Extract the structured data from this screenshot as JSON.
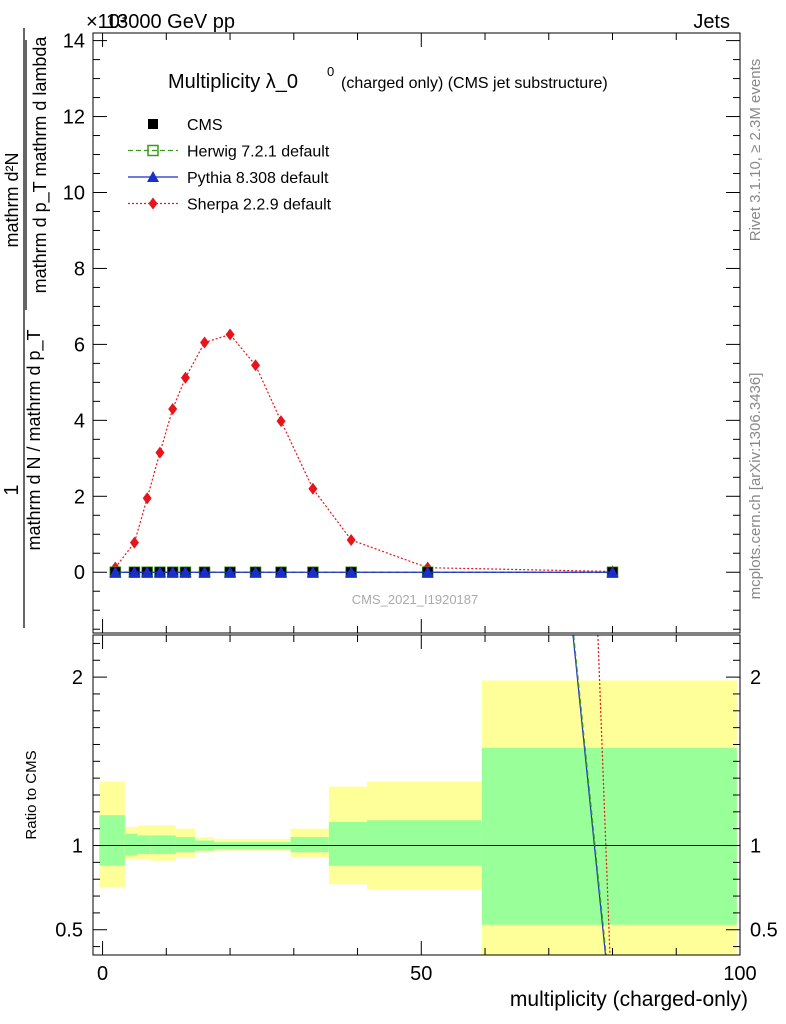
{
  "header": {
    "left": "13000 GeV pp",
    "right": "Jets",
    "exponent": "×10³"
  },
  "side_labels": {
    "rivet": "Rivet 3.1.10, ≥ 2.3M events",
    "mcplots": "mcplots.cern.ch [arXiv:1306.3436]"
  },
  "watermark": "CMS_2021_I1920187",
  "chart_data": [
    {
      "type": "line",
      "title_main": "Multiplicity λ_0",
      "title_sup": "0",
      "title_sub": "(charged only) (CMS jet substructure)",
      "ylabel": {
        "num": "mathrm d²N",
        "den": "mathrm d p_T mathrm d lambda",
        "prefix_num": "1",
        "prefix_den": "mathrm d N / mathrm d p_T"
      },
      "xlim": [
        -1.5,
        100
      ],
      "ylim": [
        -1.6,
        14.2
      ],
      "y_ticks": [
        0,
        2,
        4,
        6,
        8,
        10,
        12,
        14
      ],
      "x_ticks": [
        0,
        50,
        100
      ],
      "legend": [
        {
          "name": "CMS",
          "color": "#000000",
          "marker": "square"
        },
        {
          "name": "Herwig 7.2.1 default",
          "color": "#3a9a1a",
          "marker": "open-square",
          "dash": "5,3"
        },
        {
          "name": "Pythia 8.308 default",
          "color": "#1a2ec8",
          "marker": "triangle",
          "dash": ""
        },
        {
          "name": "Sherpa 2.2.9 default",
          "color": "#e8141b",
          "marker": "diamond",
          "dash": "2,2"
        }
      ],
      "x": [
        2,
        5,
        7,
        9,
        11,
        13,
        16,
        20,
        24,
        28,
        33,
        39,
        51,
        80
      ],
      "series": [
        {
          "name": "CMS",
          "values": [
            0,
            0,
            0,
            0,
            0,
            0,
            0,
            0,
            0,
            0,
            0,
            0,
            0,
            0
          ]
        },
        {
          "name": "Herwig 7.2.1 default",
          "values": [
            0,
            0,
            0,
            0,
            0,
            0,
            0,
            0,
            0,
            0,
            0,
            0,
            0,
            0
          ]
        },
        {
          "name": "Pythia 8.308 default",
          "values": [
            0,
            0,
            0,
            0,
            0,
            0,
            0,
            0,
            0,
            0,
            0,
            0,
            0,
            0
          ]
        },
        {
          "name": "Sherpa 2.2.9 default",
          "values": [
            0.12,
            0.78,
            1.95,
            3.15,
            4.3,
            5.12,
            6.05,
            6.26,
            5.45,
            3.98,
            2.2,
            0.85,
            0.12,
            0.02
          ]
        }
      ]
    },
    {
      "type": "area",
      "ylabel": "Ratio to CMS",
      "xlabel": "multiplicity (charged-only)",
      "xlim": [
        -1.5,
        100
      ],
      "ylim": [
        0.35,
        2.25
      ],
      "y_ticks": [
        0.5,
        1,
        2
      ],
      "y_tick_labels": [
        "0.5",
        "1",
        "2"
      ],
      "x_ticks": [
        0,
        50,
        100
      ],
      "band_colors": {
        "outer": "#ffff99",
        "inner": "#99ff99"
      },
      "bins": [
        {
          "lo": -0.5,
          "hi": 3.5,
          "inner": [
            0.88,
            1.18
          ],
          "outer": [
            0.75,
            1.38
          ]
        },
        {
          "lo": 3.5,
          "hi": 5.5,
          "inner": [
            0.94,
            1.07
          ],
          "outer": [
            0.92,
            1.11
          ]
        },
        {
          "lo": 5.5,
          "hi": 7.5,
          "inner": [
            0.95,
            1.06
          ],
          "outer": [
            0.92,
            1.12
          ]
        },
        {
          "lo": 7.5,
          "hi": 11.5,
          "inner": [
            0.95,
            1.06
          ],
          "outer": [
            0.91,
            1.12
          ]
        },
        {
          "lo": 11.5,
          "hi": 14.5,
          "inner": [
            0.96,
            1.05
          ],
          "outer": [
            0.93,
            1.1
          ]
        },
        {
          "lo": 14.5,
          "hi": 17.5,
          "inner": [
            0.97,
            1.03
          ],
          "outer": [
            0.96,
            1.05
          ]
        },
        {
          "lo": 17.5,
          "hi": 22.5,
          "inner": [
            0.98,
            1.02
          ],
          "outer": [
            0.97,
            1.04
          ]
        },
        {
          "lo": 22.5,
          "hi": 29.5,
          "inner": [
            0.98,
            1.02
          ],
          "outer": [
            0.97,
            1.04
          ]
        },
        {
          "lo": 29.5,
          "hi": 35.5,
          "inner": [
            0.96,
            1.05
          ],
          "outer": [
            0.93,
            1.1
          ]
        },
        {
          "lo": 35.5,
          "hi": 41.5,
          "inner": [
            0.88,
            1.14
          ],
          "outer": [
            0.77,
            1.35
          ]
        },
        {
          "lo": 41.5,
          "hi": 59.5,
          "inner": [
            0.88,
            1.15
          ],
          "outer": [
            0.74,
            1.38
          ]
        },
        {
          "lo": 59.5,
          "hi": 99.5,
          "inner": [
            0.53,
            1.58
          ],
          "outer": [
            0.3,
            1.98
          ]
        }
      ],
      "lines": [
        {
          "name": "Pythia 8.308 default",
          "color": "#1a2ec8",
          "dash": "",
          "points": [
            [
              73.8,
              2.25
            ],
            [
              78.9,
              0.35
            ]
          ]
        },
        {
          "name": "Herwig 7.2.1 default",
          "color": "#3a9a1a",
          "dash": "5,3",
          "points": [
            [
              73.9,
              2.25
            ],
            [
              79.0,
              0.35
            ]
          ]
        },
        {
          "name": "Sherpa 2.2.9 default",
          "color": "#e8141b",
          "dash": "2,2",
          "points": [
            [
              77.7,
              2.25
            ],
            [
              79.6,
              0.35
            ]
          ]
        }
      ]
    }
  ]
}
